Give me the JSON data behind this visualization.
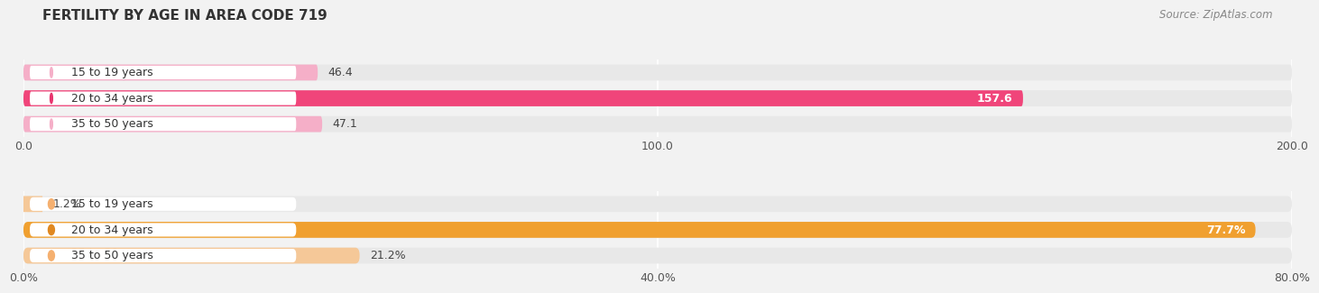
{
  "title": "FERTILITY BY AGE IN AREA CODE 719",
  "source": "Source: ZipAtlas.com",
  "top_bars": {
    "categories": [
      "15 to 19 years",
      "20 to 34 years",
      "35 to 50 years"
    ],
    "values": [
      46.4,
      157.6,
      47.1
    ],
    "bar_colors": [
      "#f5afc8",
      "#f0457a",
      "#f5afc8"
    ],
    "dot_colors": [
      "#f5afc8",
      "#e8356e",
      "#f5afc8"
    ],
    "xlim": [
      0,
      200
    ],
    "xticks": [
      0.0,
      100.0,
      200.0
    ],
    "xtick_labels": [
      "0.0",
      "100.0",
      "200.0"
    ],
    "value_colors": [
      "#555555",
      "#ffffff",
      "#555555"
    ],
    "value_labels": [
      "46.4",
      "157.6",
      "47.1"
    ]
  },
  "bottom_bars": {
    "categories": [
      "15 to 19 years",
      "20 to 34 years",
      "35 to 50 years"
    ],
    "values": [
      1.2,
      77.7,
      21.2
    ],
    "bar_colors": [
      "#f5c898",
      "#f0a030",
      "#f5c898"
    ],
    "dot_colors": [
      "#f5b070",
      "#e08820",
      "#f5b070"
    ],
    "xlim": [
      0,
      80
    ],
    "xticks": [
      0.0,
      40.0,
      80.0
    ],
    "xtick_labels": [
      "0.0%",
      "40.0%",
      "80.0%"
    ],
    "value_labels": [
      "1.2%",
      "77.7%",
      "21.2%"
    ],
    "value_colors": [
      "#555555",
      "#ffffff",
      "#555555"
    ]
  },
  "bg_color": "#f2f2f2",
  "bar_bg_color": "#e8e8e8",
  "label_bg_color": "#ffffff",
  "label_fontsize": 9,
  "value_fontsize": 9,
  "tick_fontsize": 9,
  "title_fontsize": 11,
  "source_fontsize": 8.5
}
